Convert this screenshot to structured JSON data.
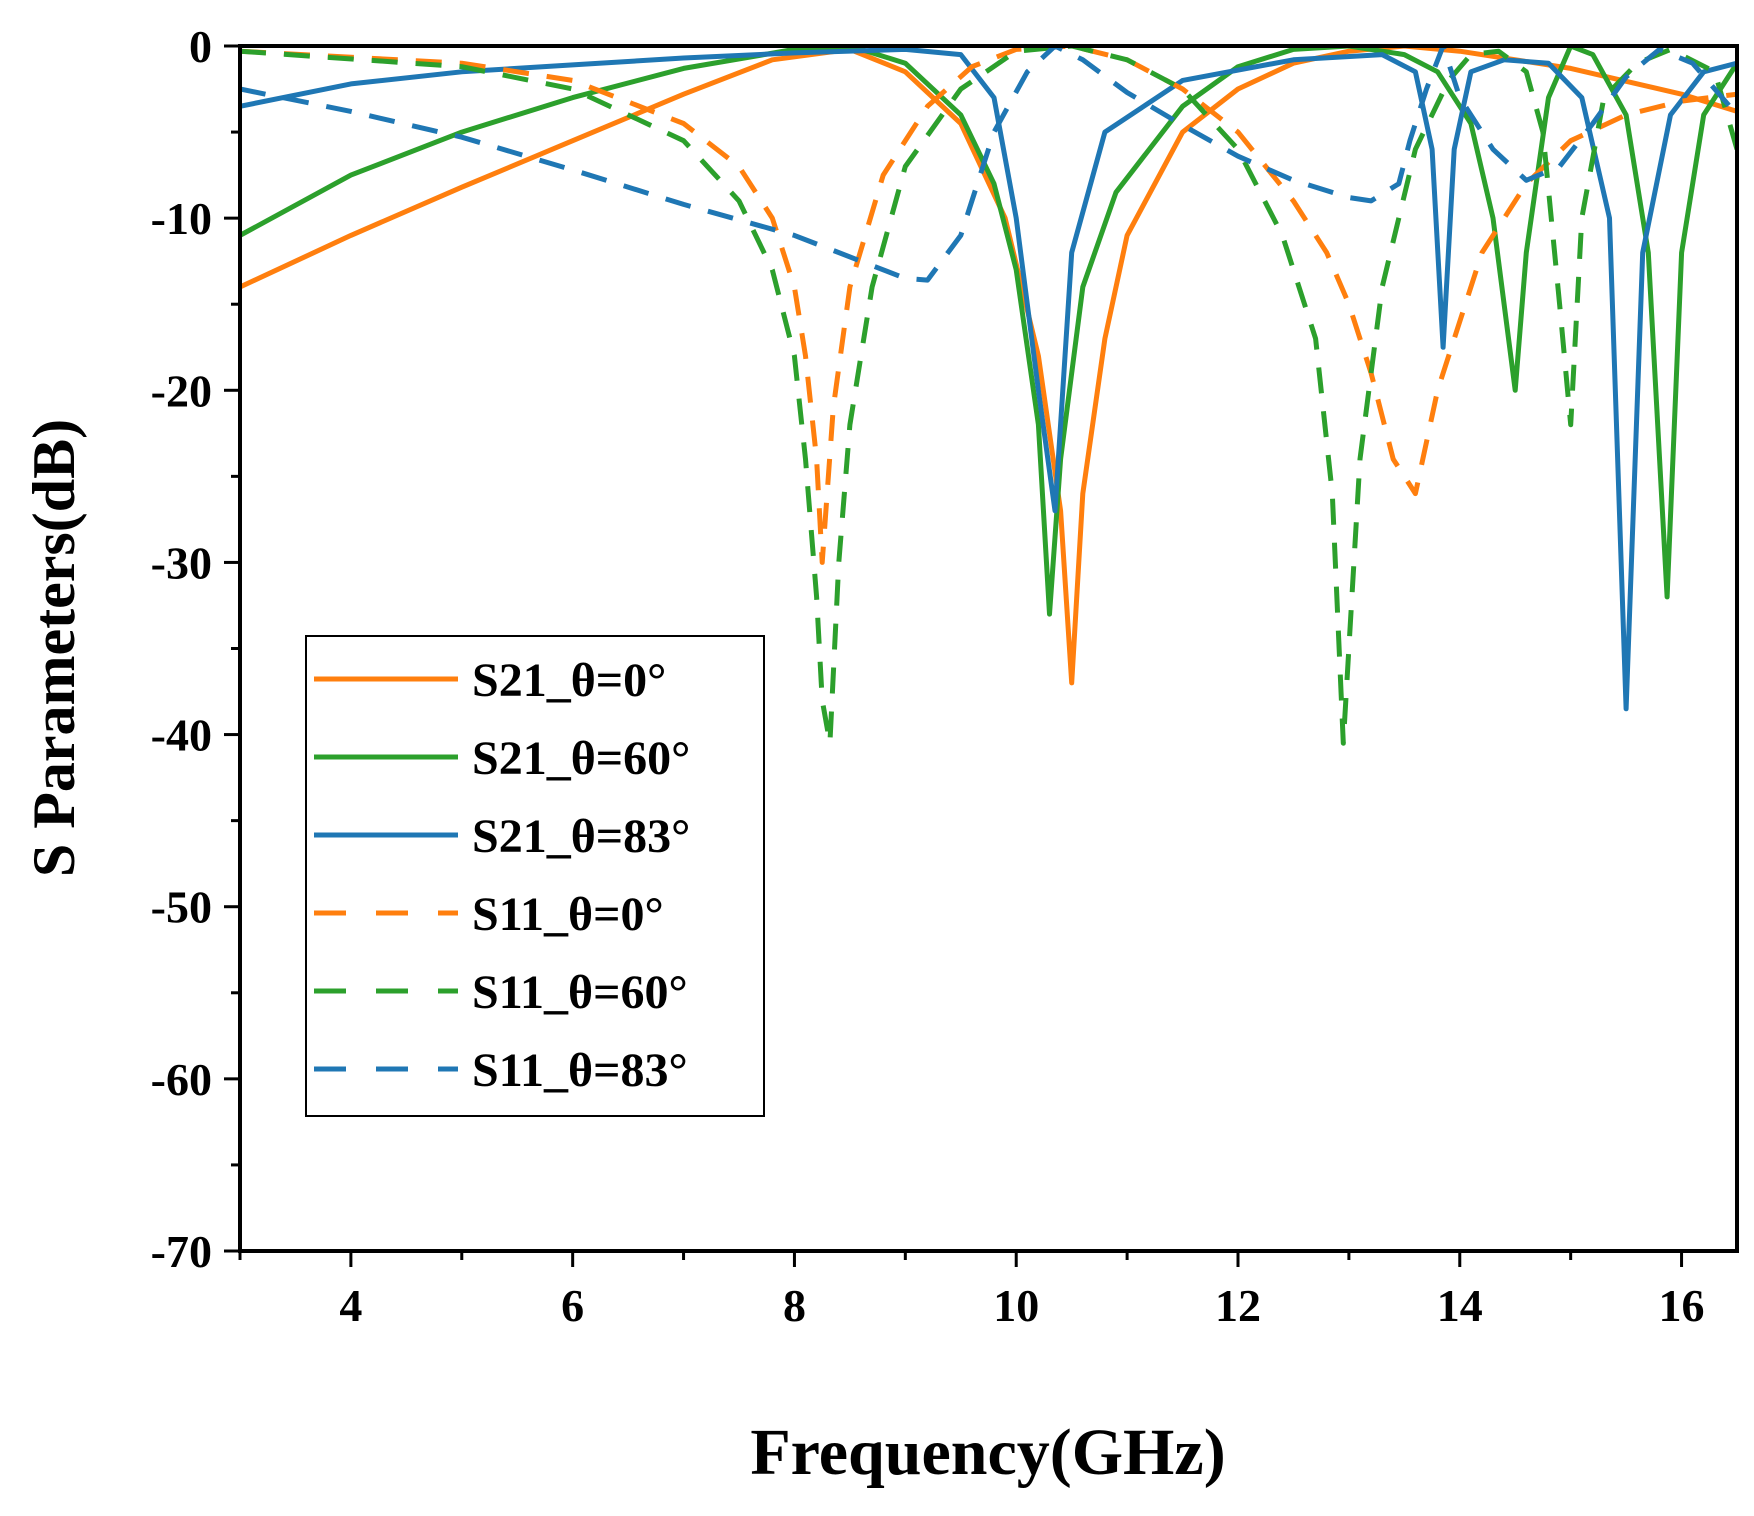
{
  "chart_data": {
    "type": "line",
    "title": "",
    "xlabel": "Frequency(GHz)",
    "ylabel": "S Parameters(dB)",
    "xlim": [
      3,
      16.5
    ],
    "ylim": [
      -70,
      0
    ],
    "x_ticks": [
      4,
      6,
      8,
      10,
      12,
      14,
      16
    ],
    "y_ticks": [
      0,
      -10,
      -20,
      -30,
      -40,
      -50,
      -60,
      -70
    ],
    "legend_position": "lower-left",
    "series": [
      {
        "name": "S21_θ=0°",
        "color": "#ff7f0e",
        "style": "solid",
        "x": [
          3,
          4,
          5,
          6,
          7,
          7.8,
          8.5,
          9.0,
          9.5,
          9.9,
          10.2,
          10.4,
          10.5,
          10.6,
          10.8,
          11.0,
          11.5,
          12.0,
          12.5,
          13.0,
          13.5,
          14.0,
          15.0,
          16.0,
          16.5
        ],
        "y": [
          -14,
          -11,
          -8.2,
          -5.5,
          -2.8,
          -0.8,
          -0.2,
          -1.5,
          -4.5,
          -10,
          -18,
          -27,
          -37,
          -26,
          -17,
          -11,
          -5,
          -2.5,
          -1,
          -0.3,
          0,
          -0.3,
          -1.3,
          -2.8,
          -3.8
        ]
      },
      {
        "name": "S21_θ=60°",
        "color": "#2ca02c",
        "style": "solid",
        "x": [
          3,
          4,
          5,
          6,
          7,
          8,
          8.6,
          9.0,
          9.5,
          9.8,
          10.0,
          10.2,
          10.3,
          10.4,
          10.6,
          10.9,
          11.5,
          12.0,
          12.5,
          13.0,
          13.5,
          13.8,
          14.1,
          14.3,
          14.5,
          14.6,
          14.8,
          15.0,
          15.2,
          15.5,
          15.7,
          15.87,
          16.0,
          16.2,
          16.5
        ],
        "y": [
          -11,
          -7.5,
          -5,
          -3,
          -1.3,
          -0.2,
          -0.2,
          -1,
          -4,
          -8,
          -13,
          -22,
          -33,
          -24,
          -14,
          -8.5,
          -3.5,
          -1.2,
          -0.2,
          0,
          -0.5,
          -1.5,
          -4.5,
          -10,
          -20,
          -12,
          -3,
          0,
          -0.5,
          -4,
          -12,
          -32,
          -12,
          -4,
          -1
        ]
      },
      {
        "name": "S21_θ=83°",
        "color": "#1f77b4",
        "style": "solid",
        "x": [
          3,
          4,
          5,
          6,
          7,
          8,
          9,
          9.5,
          9.8,
          10.0,
          10.2,
          10.35,
          10.5,
          10.8,
          11.5,
          12.5,
          13.3,
          13.6,
          13.75,
          13.85,
          13.95,
          14.1,
          14.4,
          14.8,
          15.1,
          15.35,
          15.5,
          15.65,
          15.9,
          16.2,
          16.5
        ],
        "y": [
          -3.5,
          -2.2,
          -1.5,
          -1.1,
          -0.7,
          -0.4,
          -0.2,
          -0.5,
          -3,
          -10,
          -20,
          -27,
          -12,
          -5,
          -2,
          -0.8,
          -0.5,
          -1.5,
          -6,
          -17.5,
          -6,
          -1.5,
          -0.8,
          -1,
          -3,
          -10,
          -38.5,
          -12,
          -4,
          -1.5,
          -1
        ]
      },
      {
        "name": "S11_θ=0°",
        "color": "#ff7f0e",
        "style": "dashed",
        "x": [
          3,
          5,
          6,
          7,
          7.5,
          7.8,
          8.0,
          8.1,
          8.2,
          8.25,
          8.35,
          8.5,
          8.8,
          9.2,
          9.6,
          10.0,
          10.5,
          11.0,
          11.5,
          12.0,
          12.5,
          12.8,
          13.0,
          13.2,
          13.4,
          13.6,
          13.8,
          14.2,
          14.6,
          15.0,
          15.5,
          16.0,
          16.5
        ],
        "y": [
          -0.3,
          -1,
          -2,
          -4.5,
          -7,
          -10,
          -14,
          -18,
          -24,
          -30,
          -21,
          -14,
          -7.5,
          -3.5,
          -1.2,
          -0.2,
          0,
          -0.8,
          -2.5,
          -5,
          -9,
          -12,
          -15,
          -19,
          -24,
          -26,
          -20,
          -12,
          -8,
          -5.5,
          -4,
          -3.2,
          -2.8
        ]
      },
      {
        "name": "S11_θ=60°",
        "color": "#2ca02c",
        "style": "dashed",
        "x": [
          3,
          5,
          6,
          7,
          7.5,
          7.8,
          8.0,
          8.1,
          8.2,
          8.25,
          8.32,
          8.4,
          8.5,
          8.7,
          9.0,
          9.5,
          10.0,
          10.5,
          11.0,
          11.5,
          12.0,
          12.4,
          12.7,
          12.85,
          12.95,
          13.1,
          13.3,
          13.6,
          13.9,
          14.1,
          14.35,
          14.6,
          14.75,
          14.9,
          15.0,
          15.1,
          15.3,
          15.6,
          15.9,
          16.3,
          16.5
        ],
        "y": [
          -0.3,
          -1.2,
          -2.5,
          -5.5,
          -9,
          -13,
          -18,
          -24,
          -32,
          -38,
          -40.5,
          -30,
          -22,
          -14,
          -7,
          -2.5,
          -0.3,
          0,
          -0.8,
          -2.5,
          -6,
          -11,
          -17,
          -26,
          -40.5,
          -24,
          -14,
          -6,
          -2,
          -0.5,
          -0.3,
          -1.5,
          -5,
          -15,
          -22,
          -10,
          -3,
          -1,
          -0.2,
          -1.5,
          -6
        ]
      },
      {
        "name": "S11_θ=83°",
        "color": "#1f77b4",
        "style": "dashed",
        "x": [
          3,
          4,
          5,
          6,
          7,
          8,
          8.6,
          9.0,
          9.2,
          9.5,
          9.8,
          10.1,
          10.35,
          10.6,
          11.0,
          11.5,
          12.0,
          12.5,
          13.0,
          13.2,
          13.45,
          13.55,
          13.7,
          13.85,
          14.0,
          14.3,
          14.6,
          14.9,
          15.2,
          15.5,
          15.8,
          16.1,
          16.5
        ],
        "y": [
          -2.5,
          -3.8,
          -5.3,
          -7.2,
          -9.2,
          -11,
          -12.5,
          -13.5,
          -13.6,
          -11,
          -5,
          -1.5,
          0,
          -0.8,
          -2.7,
          -4.6,
          -6.4,
          -7.8,
          -8.8,
          -9,
          -8,
          -5.5,
          -2.5,
          0,
          -3,
          -6,
          -7.8,
          -7,
          -4.5,
          -1.8,
          -0.2,
          -1,
          -4
        ]
      }
    ]
  }
}
